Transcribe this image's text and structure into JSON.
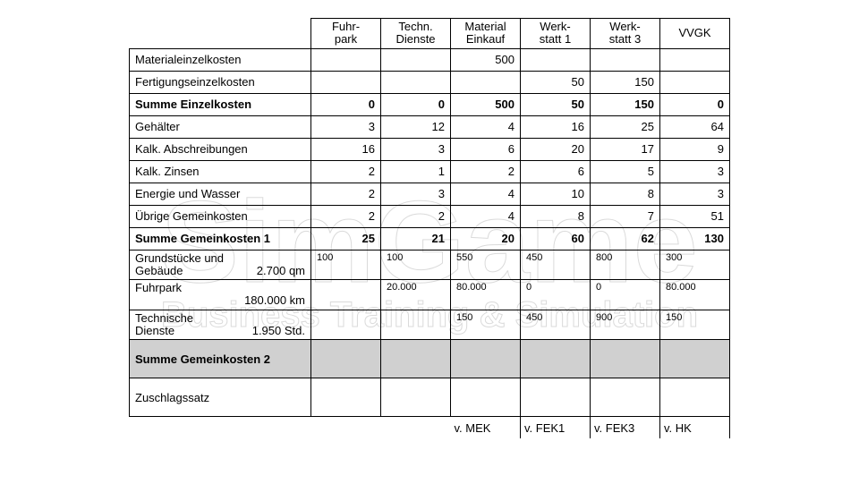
{
  "watermark": {
    "line1": "SimGame",
    "line2": "Business Training & Simulation"
  },
  "columns": [
    "Fuhr-\npark",
    "Techn.\nDienste",
    "Material\nEinkauf",
    "Werk-\nstatt 1",
    "Werk-\nstatt 3",
    "VVGK"
  ],
  "rows": {
    "r1": {
      "label": "Materialeinzelkosten",
      "vals": [
        "",
        "",
        "500",
        "",
        "",
        ""
      ]
    },
    "r2": {
      "label": "Fertigungseinzelkosten",
      "vals": [
        "",
        "",
        "",
        "50",
        "150",
        ""
      ]
    },
    "r3": {
      "label": "Summe Einzelkosten",
      "vals": [
        "0",
        "0",
        "500",
        "50",
        "150",
        "0"
      ],
      "bold": true
    },
    "r4": {
      "label": "Gehälter",
      "vals": [
        "3",
        "12",
        "4",
        "16",
        "25",
        "64"
      ]
    },
    "r5": {
      "label": "Kalk. Abschreibungen",
      "vals": [
        "16",
        "3",
        "6",
        "20",
        "17",
        "9"
      ]
    },
    "r6": {
      "label": "Kalk. Zinsen",
      "vals": [
        "2",
        "1",
        "2",
        "6",
        "5",
        "3"
      ]
    },
    "r7": {
      "label": "Energie und Wasser",
      "vals": [
        "2",
        "3",
        "4",
        "10",
        "8",
        "3"
      ]
    },
    "r8": {
      "label": "Übrige Gemeinkosten",
      "vals": [
        "2",
        "2",
        "4",
        "8",
        "7",
        "51"
      ]
    },
    "r9": {
      "label": "Summe Gemeinkosten 1",
      "vals": [
        "25",
        "21",
        "20",
        "60",
        "62",
        "130"
      ],
      "bold": true
    },
    "r10": {
      "label1": "Grundstücke und",
      "label2a": "Gebäude",
      "label2b": "2.700 qm",
      "vals": [
        "100",
        "100",
        "550",
        "450",
        "800",
        "300"
      ],
      "small": true
    },
    "r11": {
      "label1": "Fuhrpark",
      "label2a": "",
      "label2b": "180.000 km",
      "vals": [
        "",
        "20.000",
        "80.000",
        "0",
        "0",
        "80.000"
      ],
      "small": true
    },
    "r12": {
      "label1": "Technische",
      "label2a": "Dienste",
      "label2b": "1.950 Std.",
      "vals": [
        "",
        "",
        "150",
        "450",
        "900",
        "150"
      ],
      "small": true
    },
    "r13": {
      "label": "Summe Gemeinkosten 2",
      "vals": [
        "",
        "",
        "",
        "",
        "",
        ""
      ],
      "bold": true,
      "shaded": true
    },
    "r14": {
      "label": "Zuschlagssatz",
      "vals": [
        "",
        "",
        "",
        "",
        "",
        ""
      ]
    }
  },
  "footer": [
    "",
    "",
    "v. MEK",
    "v. FEK1",
    "v. FEK3",
    "v. HK"
  ],
  "colors": {
    "shade": "#d0d0d0"
  }
}
